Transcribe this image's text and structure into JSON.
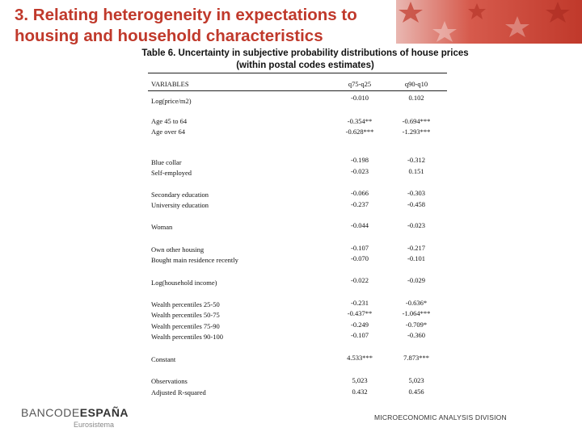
{
  "slide": {
    "title": "3. Relating heterogeneity in expectations to housing and household characteristics"
  },
  "table": {
    "caption_line1": "Table 6. Uncertainty in subjective probability distributions of house prices",
    "caption_line2": "(within postal codes estimates)",
    "headers": {
      "variables": "VARIABLES",
      "col1": "q75-q25",
      "col2": "q90-q10"
    },
    "rows": [
      {
        "label": "Log(price/m2)",
        "col1": "-0.010",
        "col2": "0.102"
      },
      {
        "label": "Age 45 to 64",
        "col1": "-0.354**",
        "col2": "-0.694***"
      },
      {
        "label": "Age over 64",
        "col1": "-0.628***",
        "col2": "-1.293***"
      },
      {
        "label": "Blue collar",
        "col1": "-0.198",
        "col2": "-0.312"
      },
      {
        "label": "Self-employed",
        "col1": "-0.023",
        "col2": "0.151"
      },
      {
        "label": "Secondary education",
        "col1": "-0.066",
        "col2": "-0.303"
      },
      {
        "label": "University education",
        "col1": "-0.237",
        "col2": "-0.458"
      },
      {
        "label": "Woman",
        "col1": "-0.044",
        "col2": "-0.023"
      },
      {
        "label": "Own other housing",
        "col1": "-0.107",
        "col2": "-0.217"
      },
      {
        "label": "Bought main residence recently",
        "col1": "-0.070",
        "col2": "-0.101"
      },
      {
        "label": "Log(household income)",
        "col1": "-0.022",
        "col2": "-0.029"
      },
      {
        "label": "Wealth percentiles 25-50",
        "col1": "-0.231",
        "col2": "-0.636*"
      },
      {
        "label": "Wealth percentiles 50-75",
        "col1": "-0.437**",
        "col2": "-1.064***"
      },
      {
        "label": "Wealth percentiles 75-90",
        "col1": "-0.249",
        "col2": "-0.709*"
      },
      {
        "label": "Wealth percentiles 90-100",
        "col1": "-0.107",
        "col2": "-0.360"
      },
      {
        "label": "Constant",
        "col1": "4.533***",
        "col2": "7.873***"
      },
      {
        "label": "Observations",
        "col1": "5,023",
        "col2": "5,023"
      },
      {
        "label": "Adjusted R-squared",
        "col1": "0.432",
        "col2": "0.456"
      }
    ]
  },
  "footer": {
    "logo_part1": "BANCODE",
    "logo_part2": "ESPAÑA",
    "logo_sub": "Eurosistema",
    "division": "MICROECONOMIC ANALYSIS DIVISION"
  },
  "colors": {
    "accent": "#c0392b"
  }
}
